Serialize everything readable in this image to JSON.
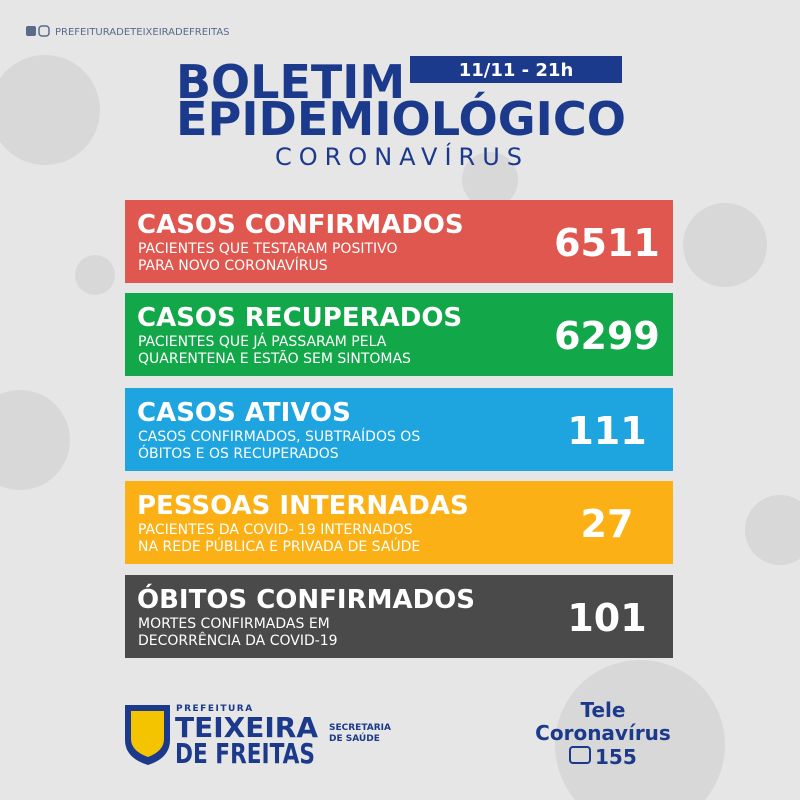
{
  "social_handle": "PREFEITURADETEIXEIRADEFREITAS",
  "header": {
    "title_lines": [
      "BOLETIM",
      "EPIDEMIOLÓGICO"
    ],
    "subtitle": "CORONAVÍRUS",
    "date": "11/11 - 21h"
  },
  "cards": [
    {
      "title": "CASOS CONFIRMADOS",
      "description": [
        "PACIENTES QUE TESTARAM POSITIVO",
        "PARA NOVO CORONAVÍRUS"
      ],
      "value": 6511,
      "color": "#e0574f"
    },
    {
      "title": "CASOS RECUPERADOS",
      "description": [
        "PACIENTES QUE JÁ PASSARAM PELA",
        "QUARENTENA E ESTÃO SEM SINTOMAS"
      ],
      "value": 6299,
      "color": "#12a84a"
    },
    {
      "title": "CASOS ATIVOS",
      "description": [
        "CASOS CONFIRMADOS, SUBTRAÍDOS OS",
        "ÓBITOS E OS RECUPERADOS"
      ],
      "value": 111,
      "color": "#1ea5df"
    },
    {
      "title": "PESSOAS INTERNADAS",
      "description": [
        "PACIENTES DA COVID- 19 INTERNADOS",
        "NA REDE PÚBLICA E PRIVADA DE SAÚDE"
      ],
      "value": 27,
      "color": "#fbb116"
    },
    {
      "title": "ÓBITOS CONFIRMADOS",
      "description": [
        "MORTES CONFIRMADAS EM",
        "DECORRÊNCIA DA COVID-19"
      ],
      "value": 101,
      "color": "#4a4a4a"
    }
  ],
  "footer": {
    "logo": {
      "top": "PREFEITURA",
      "line1": "TEIXEIRA",
      "line2": "DE FREITAS"
    },
    "department": [
      "SECRETARIA",
      "DE SAÚDE"
    ],
    "hotline": {
      "line1": "Tele",
      "line2": "Coronavírus",
      "number": "155"
    }
  }
}
